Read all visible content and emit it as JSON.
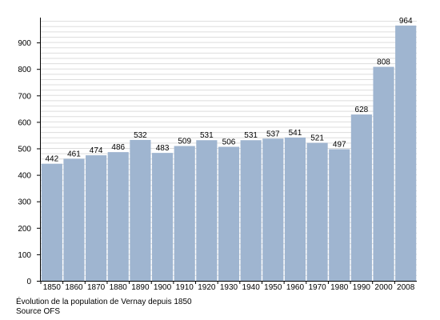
{
  "chart_data": {
    "type": "bar",
    "categories": [
      "1850",
      "1860",
      "1870",
      "1880",
      "1890",
      "1900",
      "1910",
      "1920",
      "1930",
      "1940",
      "1950",
      "1960",
      "1970",
      "1980",
      "1990",
      "2000",
      "2008"
    ],
    "values": [
      442,
      461,
      474,
      486,
      532,
      483,
      509,
      531,
      506,
      531,
      537,
      541,
      521,
      497,
      628,
      808,
      964
    ],
    "title": "",
    "xlabel": "",
    "ylabel": "",
    "ylim": [
      0,
      980
    ],
    "yticks": [
      0,
      100,
      200,
      300,
      400,
      500,
      600,
      700,
      800,
      900
    ],
    "grid": true,
    "bar_color": "#9fb5d0",
    "grid_color": "#dddddd",
    "data_labels": true
  },
  "caption": "Évolution de la population de Vernay depuis 1850",
  "source": "Source OFS"
}
